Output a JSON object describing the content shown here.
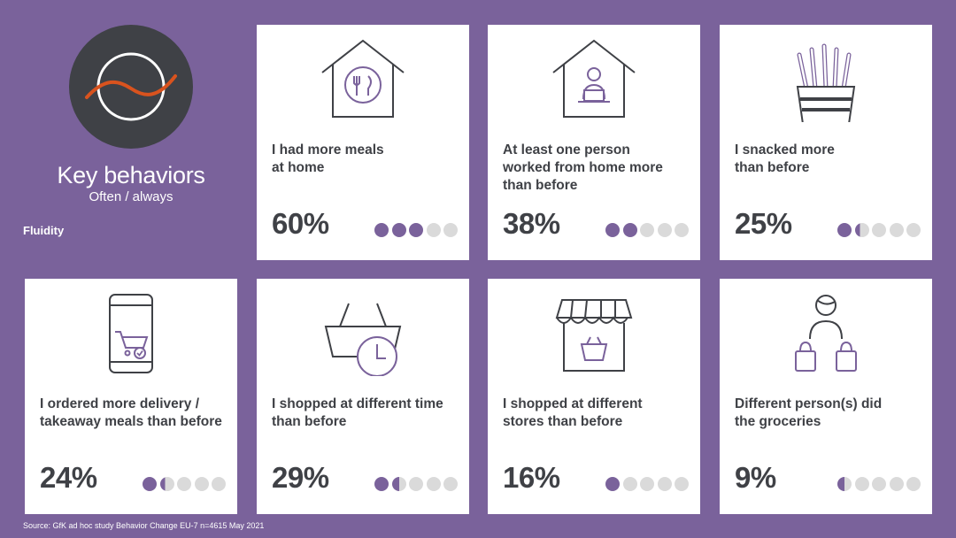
{
  "header": {
    "title": "Key behaviors",
    "subtitle": "Often / always",
    "section_label": "Fluidity"
  },
  "colors": {
    "accent": "#7a629b",
    "background": "#7a629b",
    "dark": "#3f4146",
    "orange": "#d9531e"
  },
  "cards": [
    {
      "label_lines": [
        "I had more meals",
        "at home"
      ],
      "percent": "60%",
      "value": 0.6,
      "icon": "house-cutlery-icon"
    },
    {
      "label_lines": [
        "At least one person",
        "worked from home more",
        "than before"
      ],
      "percent": "38%",
      "value": 0.38,
      "icon": "house-laptop-worker-icon"
    },
    {
      "label_lines": [
        "I snacked more",
        "than before"
      ],
      "percent": "25%",
      "value": 0.25,
      "icon": "fries-snack-icon"
    },
    {
      "label_lines": [
        "I ordered more delivery /",
        "takeaway meals than before"
      ],
      "percent": "24%",
      "value": 0.24,
      "icon": "phone-cart-icon"
    },
    {
      "label_lines": [
        "I shopped at different time",
        "than before"
      ],
      "percent": "29%",
      "value": 0.29,
      "icon": "basket-clock-icon"
    },
    {
      "label_lines": [
        "I shopped at different",
        "stores than before"
      ],
      "percent": "16%",
      "value": 0.16,
      "icon": "storefront-basket-icon"
    },
    {
      "label_lines": [
        "Different person(s) did",
        "the groceries"
      ],
      "percent": "9%",
      "value": 0.09,
      "icon": "person-bags-icon"
    }
  ],
  "footer": {
    "source": "Source: GfK ad hoc study Behavior Change EU-7 n=4615 May 2021"
  }
}
